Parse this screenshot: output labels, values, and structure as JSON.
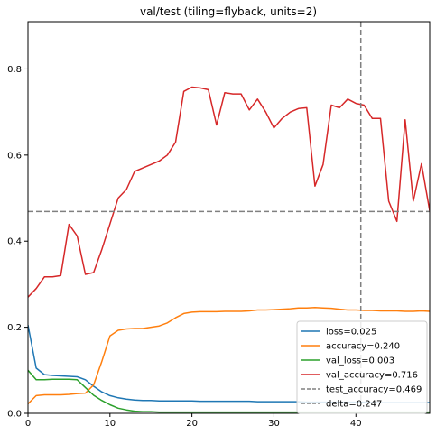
{
  "chart_data": {
    "type": "line",
    "title": "val/test (tiling=flyback, units=2)",
    "xlabel": "",
    "ylabel": "",
    "xlim": [
      0,
      49
    ],
    "ylim": [
      0,
      0.91
    ],
    "xticks": [
      0,
      10,
      20,
      30,
      40
    ],
    "yticks": [
      0.0,
      0.2,
      0.4,
      0.6,
      0.8
    ],
    "ytick_labels": [
      "0.0",
      "0.2",
      "0.4",
      "0.6",
      "0.8"
    ],
    "x": [
      0,
      1,
      2,
      3,
      4,
      5,
      6,
      7,
      8,
      9,
      10,
      11,
      12,
      13,
      14,
      15,
      16,
      17,
      18,
      19,
      20,
      21,
      22,
      23,
      24,
      25,
      26,
      27,
      28,
      29,
      30,
      31,
      32,
      33,
      34,
      35,
      36,
      37,
      38,
      39,
      40,
      41,
      42,
      43,
      44,
      45,
      46,
      47,
      48,
      49
    ],
    "series": [
      {
        "name": "loss",
        "legend": "loss=0.025",
        "color": "#1f77b4",
        "values": [
          0.205,
          0.105,
          0.09,
          0.088,
          0.087,
          0.086,
          0.085,
          0.078,
          0.063,
          0.05,
          0.041,
          0.036,
          0.033,
          0.031,
          0.03,
          0.03,
          0.029,
          0.029,
          0.029,
          0.029,
          0.029,
          0.028,
          0.028,
          0.028,
          0.028,
          0.028,
          0.028,
          0.028,
          0.027,
          0.027,
          0.027,
          0.027,
          0.027,
          0.027,
          0.026,
          0.026,
          0.026,
          0.026,
          0.026,
          0.026,
          0.026,
          0.026,
          0.025,
          0.025,
          0.025,
          0.025,
          0.025,
          0.025,
          0.025,
          0.025
        ]
      },
      {
        "name": "accuracy",
        "legend": "accuracy=0.240",
        "color": "#ff7f0e",
        "values": [
          0.022,
          0.041,
          0.043,
          0.043,
          0.043,
          0.044,
          0.046,
          0.047,
          0.066,
          0.12,
          0.18,
          0.193,
          0.196,
          0.197,
          0.197,
          0.2,
          0.203,
          0.21,
          0.222,
          0.232,
          0.235,
          0.236,
          0.236,
          0.236,
          0.237,
          0.237,
          0.237,
          0.238,
          0.24,
          0.24,
          0.241,
          0.242,
          0.243,
          0.245,
          0.245,
          0.246,
          0.245,
          0.244,
          0.242,
          0.24,
          0.24,
          0.239,
          0.239,
          0.238,
          0.238,
          0.238,
          0.237,
          0.237,
          0.238,
          0.237
        ]
      },
      {
        "name": "val_loss",
        "legend": "val_loss=0.003",
        "color": "#2ca02c",
        "values": [
          0.1,
          0.078,
          0.078,
          0.079,
          0.079,
          0.079,
          0.078,
          0.06,
          0.042,
          0.03,
          0.02,
          0.012,
          0.008,
          0.005,
          0.004,
          0.004,
          0.003,
          0.003,
          0.003,
          0.003,
          0.003,
          0.003,
          0.003,
          0.003,
          0.003,
          0.003,
          0.003,
          0.003,
          0.003,
          0.003,
          0.003,
          0.003,
          0.003,
          0.003,
          0.003,
          0.003,
          0.003,
          0.003,
          0.003,
          0.003,
          0.003,
          0.003,
          0.003,
          0.003,
          0.003,
          0.003,
          0.003,
          0.003,
          0.003,
          0.003
        ]
      },
      {
        "name": "val_accuracy",
        "legend": "val_accuracy=0.716",
        "color": "#d62728",
        "values": [
          0.27,
          0.29,
          0.317,
          0.317,
          0.32,
          0.439,
          0.412,
          0.323,
          0.327,
          0.38,
          0.44,
          0.5,
          0.52,
          0.562,
          0.57,
          0.578,
          0.586,
          0.6,
          0.63,
          0.748,
          0.758,
          0.756,
          0.752,
          0.67,
          0.745,
          0.742,
          0.742,
          0.705,
          0.73,
          0.7,
          0.663,
          0.685,
          0.7,
          0.708,
          0.71,
          0.528,
          0.578,
          0.716,
          0.71,
          0.73,
          0.72,
          0.716,
          0.685,
          0.685,
          0.493,
          0.446,
          0.682,
          0.493,
          0.58,
          0.47
        ]
      }
    ],
    "reference_lines": [
      {
        "name": "test_accuracy",
        "legend": "test_accuracy=0.469",
        "orientation": "horizontal",
        "value": 0.469,
        "color": "#808080",
        "style": "dashed"
      },
      {
        "name": "delta",
        "legend": "delta=0.247",
        "orientation": "vertical",
        "value": 40.6,
        "color": "#808080",
        "style": "dashed"
      }
    ],
    "legend_position": "lower-right"
  }
}
